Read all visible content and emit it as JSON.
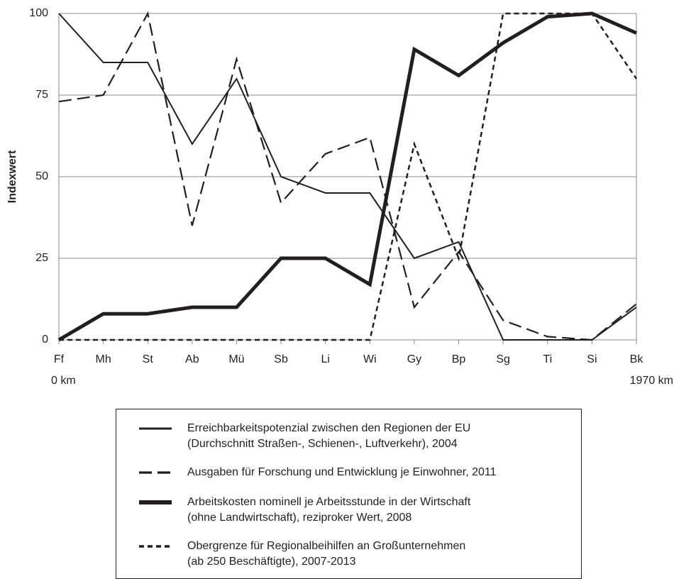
{
  "chart_data": {
    "type": "line",
    "y_label": "Indexwert",
    "categories": [
      "Ff",
      "Mh",
      "St",
      "Ab",
      "Mü",
      "Sb",
      "Li",
      "Wi",
      "Gy",
      "Bp",
      "Sg",
      "Ti",
      "Si",
      "Bk"
    ],
    "annotations": [
      "0 km",
      "1970 km"
    ],
    "ylim": [
      0,
      100
    ],
    "yticks": [
      0,
      25,
      50,
      75,
      100
    ],
    "grid": true,
    "series": [
      {
        "name": "Erreichbarkeitspotenzial zwischen den Regionen der EU\n(Durchschnitt Straßen-, Schienen-, Luftverkehr), 2004",
        "color": "#231f20",
        "line_style": "solid",
        "values": [
          100,
          85,
          85,
          60,
          80,
          50,
          45,
          45,
          25,
          30,
          0,
          0,
          0,
          10
        ]
      },
      {
        "name": "Ausgaben für Forschung und Entwicklung je Einwohner, 2011",
        "color": "#231f20",
        "line_style": "dashed",
        "values": [
          73,
          75,
          100,
          35,
          86,
          42,
          57,
          62,
          10,
          27,
          6,
          1,
          0,
          11
        ]
      },
      {
        "name": "Arbeitskosten nominell je Arbeitsstunde in der Wirtschaft\n(ohne Landwirtschaft), reziproker Wert, 2008",
        "color": "#231f20",
        "line_style": "thick",
        "values": [
          0,
          8,
          8,
          10,
          10,
          25,
          25,
          17,
          89,
          81,
          91,
          99,
          100,
          94
        ]
      },
      {
        "name": "Obergrenze für Regionalbeihilfen an Großunternehmen\n(ab 250 Beschäftigte), 2007-2013",
        "color": "#231f20",
        "line_style": "dotted",
        "values": [
          0,
          0,
          0,
          0,
          0,
          0,
          0,
          0,
          60,
          25,
          100,
          100,
          100,
          80
        ]
      }
    ]
  }
}
